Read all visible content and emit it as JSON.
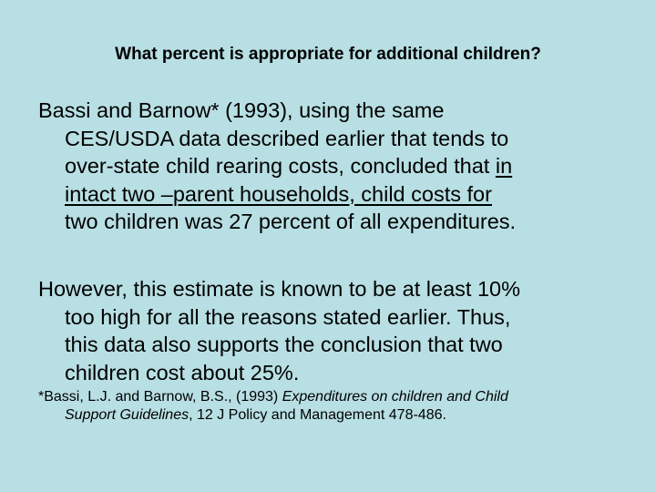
{
  "slide": {
    "title": "What percent is appropriate for additional children?",
    "paragraph1": {
      "line1": "Bassi and Barnow* (1993), using the same",
      "line2": "CES/USDA data described earlier that tends to",
      "line3_plain": "over-state child rearing costs, concluded that ",
      "line3_underlined": "in",
      "line4_underlined": "intact two –parent households, child costs for ",
      "line5": "two children was 27 percent of all expenditures."
    },
    "paragraph2": {
      "line1": "However, this estimate is known to be at least 10%",
      "line2": "too high for all the reasons stated earlier. Thus,",
      "line3": "this data also supports the conclusion that two",
      "line4": "children cost about 25%."
    },
    "footnote": {
      "line1_plain": "*Bassi, L.J. and Barnow, B.S., (1993) ",
      "line1_italic": "Expenditures on children and Child",
      "line2_italic": "Support Guidelines",
      "line2_plain": ", 12 J Policy and Management 478-486."
    }
  },
  "colors": {
    "background": "#b8dfe3",
    "text": "#000000"
  }
}
